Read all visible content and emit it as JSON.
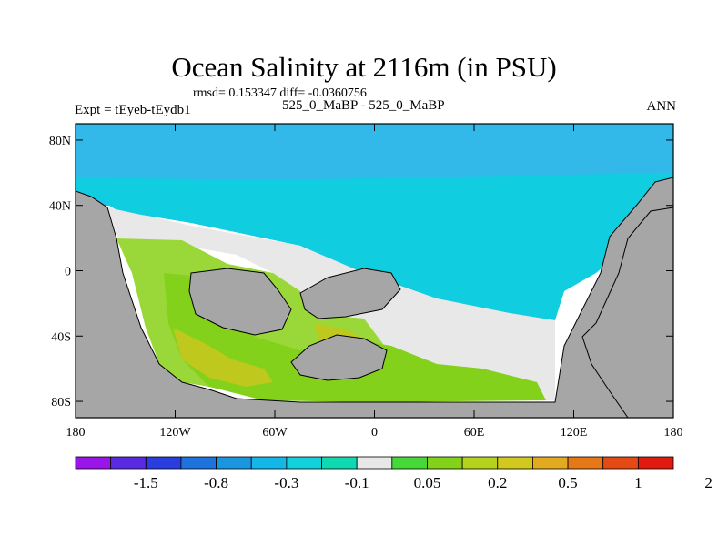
{
  "title": "Ocean Salinity at 2116m (in PSU)",
  "stats_line": "rmsd= 0.153347 diff= -0.0360756",
  "subtitle": "525_0_MaBP - 525_0_MaBP",
  "experiment": "Expt = tEyeb-tEydb1",
  "season": "ANN",
  "lat_ticks": [
    {
      "label": "80N",
      "lat": 80
    },
    {
      "label": "40N",
      "lat": 40
    },
    {
      "label": "0",
      "lat": 0
    },
    {
      "label": "40S",
      "lat": -40
    },
    {
      "label": "80S",
      "lat": -80
    }
  ],
  "lon_ticks": [
    {
      "label": "180",
      "lon": -180
    },
    {
      "label": "120W",
      "lon": -120
    },
    {
      "label": "60W",
      "lon": -60
    },
    {
      "label": "0",
      "lon": 0
    },
    {
      "label": "60E",
      "lon": 60
    },
    {
      "label": "120E",
      "lon": 120
    },
    {
      "label": "180",
      "lon": 180
    }
  ],
  "colors": {
    "land": "#a6a6a6",
    "zero": "#e8e8e8",
    "sky": "#33b8ea",
    "cyan": "#11cde0",
    "lightgreen": "#9ad83a",
    "green": "#83d11a",
    "yellow": "#bfc81c"
  },
  "colorbar": {
    "colors": [
      "#9a16e8",
      "#5a2ae0",
      "#2a3ee0",
      "#1e72dc",
      "#1a96e0",
      "#14b8e8",
      "#12d0dc",
      "#10d8b0",
      "#e8e8e8",
      "#46d836",
      "#82d21a",
      "#b6d21c",
      "#d2c81e",
      "#e2aa1e",
      "#e67818",
      "#e64a14",
      "#e01a0e"
    ],
    "labels": [
      "-1.5",
      "-0.8",
      "-0.3",
      "-0.1",
      "0.05",
      "0.2",
      "0.5",
      "1",
      "2"
    ]
  }
}
